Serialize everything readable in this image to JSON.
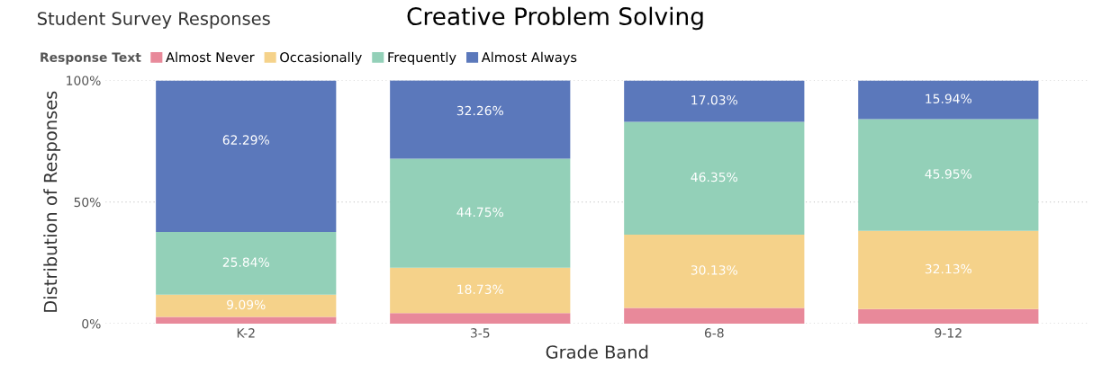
{
  "chart_data": {
    "type": "bar",
    "title": "Creative Problem Solving",
    "subtitle": "Student Survey Responses",
    "xlabel": "Grade Band",
    "ylabel": "Distribution of Responses",
    "legend_title": "Response Text",
    "categories": [
      "K-2",
      "3-5",
      "6-8",
      "9-12"
    ],
    "stacked": true,
    "series": [
      {
        "name": "Almost Never",
        "color": "#e8899a",
        "values": [
          2.8,
          4.3,
          6.5,
          6.0
        ],
        "value_labels": [
          null,
          null,
          null,
          null
        ]
      },
      {
        "name": "Occasionally",
        "color": "#f5d28a",
        "values": [
          9.09,
          18.73,
          30.13,
          32.13
        ],
        "value_labels": [
          "9.09%",
          "18.73%",
          "30.13%",
          "32.13%"
        ]
      },
      {
        "name": "Frequently",
        "color": "#93d0b8",
        "values": [
          25.84,
          44.75,
          46.35,
          45.95
        ],
        "value_labels": [
          "25.84%",
          "44.75%",
          "46.35%",
          "45.95%"
        ]
      },
      {
        "name": "Almost Always",
        "color": "#5b78bb",
        "values": [
          62.29,
          32.26,
          17.03,
          15.94
        ],
        "value_labels": [
          "62.29%",
          "32.26%",
          "17.03%",
          "15.94%"
        ]
      }
    ],
    "ylim": [
      0,
      100
    ],
    "yticks": [
      {
        "value": 0,
        "label": "0%"
      },
      {
        "value": 50,
        "label": "50%"
      },
      {
        "value": 100,
        "label": "100%"
      }
    ],
    "grid": "y",
    "legend": "top left"
  }
}
